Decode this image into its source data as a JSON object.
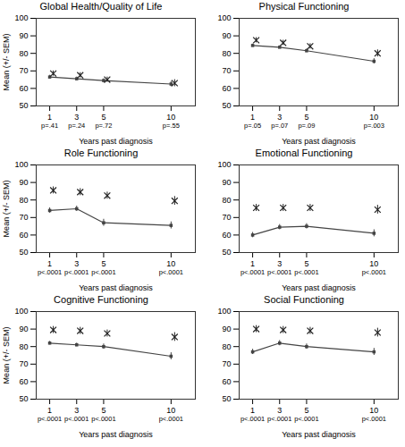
{
  "chart_data": [
    {
      "type": "line",
      "title": "Global Health/Quality of Life",
      "x": [
        1,
        3,
        5,
        10
      ],
      "series": [
        {
          "type": "line",
          "color": "#444444",
          "marker": "square",
          "values": [
            66.5,
            65.5,
            64.5,
            62.5
          ],
          "errors": [
            1.0,
            1.0,
            1.0,
            1.5
          ]
        },
        {
          "type": "scatter",
          "color": "#222222",
          "marker": "x",
          "values": [
            68.5,
            67.5,
            65.0,
            63.0
          ],
          "errors": [
            1.5,
            1.5,
            1.5,
            2.0
          ]
        }
      ],
      "annotations": [
        "p=.41",
        "p=.24",
        "p=.72",
        "p=.55"
      ],
      "xlabel": "Years past diagnosis",
      "ylabel": "Mean (+/- SEM)",
      "xlim": [
        0,
        11.8
      ],
      "xticks": [
        1,
        3,
        5,
        10
      ],
      "ylim": [
        50,
        100
      ],
      "yticks": [
        50,
        60,
        70,
        80,
        90,
        100
      ]
    },
    {
      "type": "line",
      "title": "Physical Functioning",
      "x": [
        1,
        3,
        5,
        10
      ],
      "series": [
        {
          "type": "line",
          "color": "#444444",
          "marker": "square",
          "values": [
            84.5,
            83.5,
            81.5,
            75.5
          ],
          "errors": [
            0.8,
            0.8,
            1.0,
            1.5
          ]
        },
        {
          "type": "scatter",
          "color": "#222222",
          "marker": "x",
          "values": [
            87.5,
            86.0,
            84.0,
            80.0
          ],
          "errors": [
            1.5,
            1.5,
            1.5,
            2.0
          ]
        }
      ],
      "annotations": [
        "p=.05",
        "p=.07",
        "p=.09",
        "p=.003"
      ],
      "xlabel": "Years past diagnosis",
      "xlim": [
        0,
        11.8
      ],
      "xticks": [
        1,
        3,
        5,
        10
      ],
      "ylim": [
        50,
        100
      ],
      "yticks": [
        50,
        60,
        70,
        80,
        90,
        100
      ]
    },
    {
      "type": "line",
      "title": "Role Functioning",
      "x": [
        1,
        3,
        5,
        10
      ],
      "series": [
        {
          "type": "line",
          "color": "#444444",
          "marker": "square",
          "values": [
            74.0,
            75.0,
            67.0,
            65.5
          ],
          "errors": [
            1.5,
            1.5,
            2.0,
            2.0
          ]
        },
        {
          "type": "scatter",
          "color": "#222222",
          "marker": "x",
          "values": [
            85.5,
            84.5,
            82.5,
            79.5
          ],
          "errors": [
            2.0,
            2.0,
            2.0,
            2.5
          ]
        }
      ],
      "annotations": [
        "p<.0001",
        "p<.0001",
        "p<.0001",
        "p<.0001"
      ],
      "xlabel": "Years past diagnosis",
      "ylabel": "Mean (+/- SEM)",
      "xlim": [
        0,
        11.8
      ],
      "xticks": [
        1,
        3,
        5,
        10
      ],
      "ylim": [
        50,
        100
      ],
      "yticks": [
        50,
        60,
        70,
        80,
        90,
        100
      ]
    },
    {
      "type": "line",
      "title": "Emotional Functioning",
      "x": [
        1,
        3,
        5,
        10
      ],
      "series": [
        {
          "type": "line",
          "color": "#444444",
          "marker": "square",
          "values": [
            60.0,
            64.5,
            65.0,
            61.0
          ],
          "errors": [
            1.5,
            1.5,
            1.5,
            2.0
          ]
        },
        {
          "type": "scatter",
          "color": "#222222",
          "marker": "x",
          "values": [
            75.5,
            75.5,
            75.5,
            74.5
          ],
          "errors": [
            2.0,
            2.0,
            2.0,
            2.5
          ]
        }
      ],
      "annotations": [
        "p<.0001",
        "p<.0001",
        "p<.0001",
        "p<.0001"
      ],
      "xlabel": "Years past diagnosis",
      "xlim": [
        0,
        11.8
      ],
      "xticks": [
        1,
        3,
        5,
        10
      ],
      "ylim": [
        50,
        100
      ],
      "yticks": [
        50,
        60,
        70,
        80,
        90,
        100
      ]
    },
    {
      "type": "line",
      "title": "Cognitive Functioning",
      "x": [
        1,
        3,
        5,
        10
      ],
      "series": [
        {
          "type": "line",
          "color": "#444444",
          "marker": "square",
          "values": [
            82.0,
            81.0,
            80.0,
            74.5
          ],
          "errors": [
            1.0,
            1.0,
            1.5,
            2.0
          ]
        },
        {
          "type": "scatter",
          "color": "#222222",
          "marker": "x",
          "values": [
            89.5,
            89.0,
            87.5,
            85.5
          ],
          "errors": [
            2.0,
            2.0,
            2.0,
            2.5
          ]
        }
      ],
      "annotations": [
        "p<.0001",
        "p<.0001",
        "p<.0001",
        "p<.0001"
      ],
      "xlabel": "Years past diagnosis",
      "ylabel": "Mean (+/- SEM)",
      "xlim": [
        0,
        11.8
      ],
      "xticks": [
        1,
        3,
        5,
        10
      ],
      "ylim": [
        50,
        100
      ],
      "yticks": [
        50,
        60,
        70,
        80,
        90,
        100
      ]
    },
    {
      "type": "line",
      "title": "Social Functioning",
      "x": [
        1,
        3,
        5,
        10
      ],
      "series": [
        {
          "type": "line",
          "color": "#444444",
          "marker": "square",
          "values": [
            77.0,
            82.0,
            80.0,
            77.0
          ],
          "errors": [
            1.5,
            1.5,
            1.5,
            2.0
          ]
        },
        {
          "type": "scatter",
          "color": "#222222",
          "marker": "x",
          "values": [
            90.0,
            89.5,
            89.0,
            88.0
          ],
          "errors": [
            2.0,
            2.0,
            2.0,
            2.5
          ]
        }
      ],
      "annotations": [
        "p<.0001",
        "p<.0001",
        "p<.0001",
        "p<.0001"
      ],
      "xlabel": "Years past diagnosis",
      "xlim": [
        0,
        11.8
      ],
      "xticks": [
        1,
        3,
        5,
        10
      ],
      "ylim": [
        50,
        100
      ],
      "yticks": [
        50,
        60,
        70,
        80,
        90,
        100
      ]
    }
  ]
}
